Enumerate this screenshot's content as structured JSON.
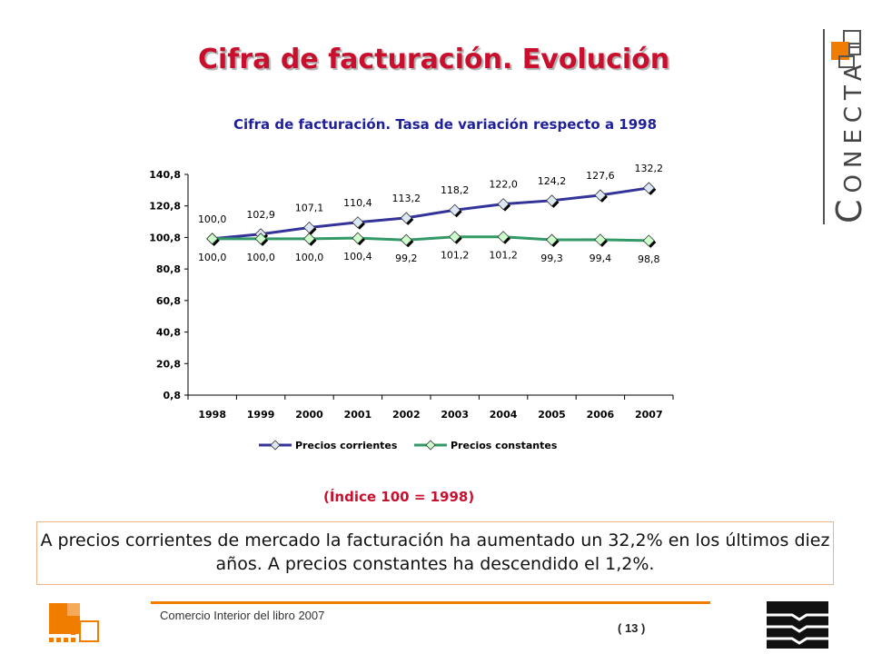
{
  "slide": {
    "title": "Cifra de facturación. Evolución",
    "index_note": "(Índice 100 = 1998)",
    "summary": "A precios corrientes de mercado la facturación ha aumentado un 32,2% en los últimos diez años. A precios constantes ha descendido el 1,2%."
  },
  "brand": {
    "word_initial": "C",
    "word_rest": "ONECTA",
    "accent_color": "#f07d00"
  },
  "footer": {
    "source": "Comercio Interior del libro 2007",
    "page": "( 13 )"
  },
  "chart_data": {
    "type": "line",
    "title": "Cifra de facturación. Tasa de variación respecto a 1998",
    "categories": [
      "1998",
      "1999",
      "2000",
      "2001",
      "2002",
      "2003",
      "2004",
      "2005",
      "2006",
      "2007"
    ],
    "y_ticks": [
      "0,8",
      "20,8",
      "40,8",
      "60,8",
      "80,8",
      "100,8",
      "120,8",
      "140,8"
    ],
    "ylim": [
      0.8,
      140.8
    ],
    "grid": false,
    "legend_position": "bottom",
    "series": [
      {
        "name": "Precios corrientes",
        "color": "#333399",
        "values": [
          100.0,
          102.9,
          107.1,
          110.4,
          113.2,
          118.2,
          122.0,
          124.2,
          127.6,
          132.2
        ],
        "labels": [
          "100,0",
          "102,9",
          "107,1",
          "110,4",
          "113,2",
          "118,2",
          "122,0",
          "124,2",
          "127,6",
          "132,2"
        ]
      },
      {
        "name": "Precios constantes",
        "color": "#339966",
        "values": [
          100.0,
          100.0,
          100.0,
          100.4,
          99.2,
          101.2,
          101.2,
          99.3,
          99.4,
          98.8
        ],
        "labels": [
          "100,0",
          "100,0",
          "100,0",
          "100,4",
          "99,2",
          "101,2",
          "101,2",
          "99,3",
          "99,4",
          "98,8"
        ]
      }
    ]
  }
}
